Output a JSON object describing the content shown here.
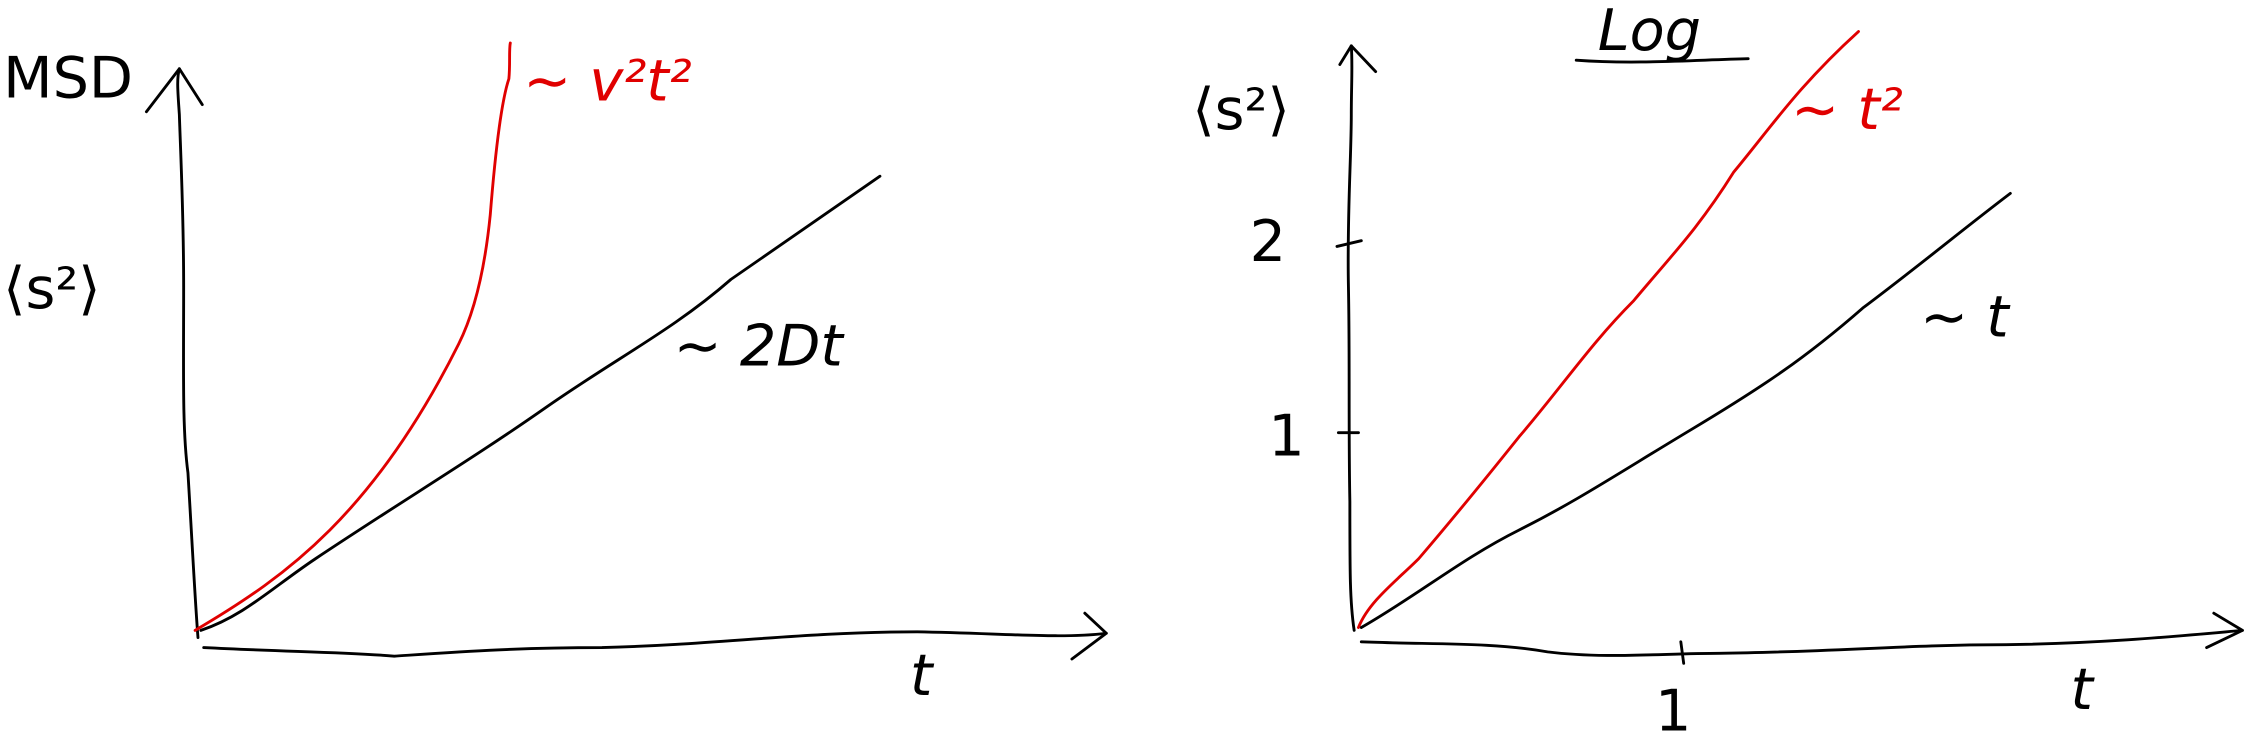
{
  "left_plot": {
    "y_label_top": "MSD",
    "y_label": "⟨s²⟩",
    "x_label": "t",
    "curves": [
      {
        "label": "∼ v²t²"
      },
      {
        "label": "∼ 2Dt"
      }
    ]
  },
  "right_plot": {
    "title": "Log",
    "y_label": "⟨s²⟩",
    "x_label": "t",
    "y_tick_labels": [
      "2",
      "1"
    ],
    "x_tick_labels": [
      "1"
    ],
    "curves": [
      {
        "label": "∼ t²"
      },
      {
        "label": "∼ t"
      }
    ]
  }
}
